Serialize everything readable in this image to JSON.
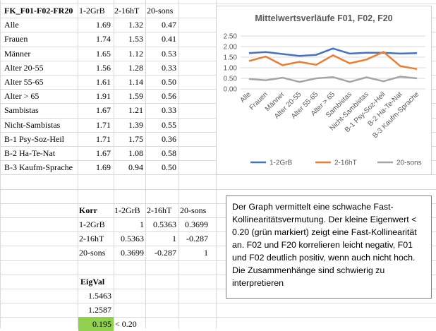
{
  "table1": {
    "header": [
      "FK_F01-F02-FR20",
      "1-2GrB",
      "2-16hT",
      "20-sons"
    ],
    "rows": [
      {
        "label": "Alle",
        "v1": "1.69",
        "v2": "1.32",
        "v3": "0.47"
      },
      {
        "label": "Frauen",
        "v1": "1.74",
        "v2": "1.53",
        "v3": "0.41"
      },
      {
        "label": "Männer",
        "v1": "1.65",
        "v2": "1.12",
        "v3": "0.53"
      },
      {
        "label": "Alter 20-55",
        "v1": "1.56",
        "v2": "1.28",
        "v3": "0.33"
      },
      {
        "label": "Alter 55-65",
        "v1": "1.61",
        "v2": "1.14",
        "v3": "0.50"
      },
      {
        "label": "Alter > 65",
        "v1": "1.91",
        "v2": "1.59",
        "v3": "0.56"
      },
      {
        "label": "Sambistas",
        "v1": "1.67",
        "v2": "1.21",
        "v3": "0.33"
      },
      {
        "label": "Nicht-Sambistas",
        "v1": "1.71",
        "v2": "1.39",
        "v3": "0.55"
      },
      {
        "label": "B-1 Psy-Soz-Heil",
        "v1": "1.71",
        "v2": "1.75",
        "v3": "0.36"
      },
      {
        "label": "B-2 Ha-Te-Nat",
        "v1": "1.67",
        "v2": "1.08",
        "v3": "0.58"
      },
      {
        "label": "B-3 Kaufm-Sprache",
        "v1": "1.69",
        "v2": "0.94",
        "v3": "0.50"
      }
    ]
  },
  "korr": {
    "title": "Korr",
    "header": [
      "1-2GrB",
      "2-16hT",
      "20-sons"
    ],
    "rows": [
      {
        "label": "1-2GrB",
        "v1": "1",
        "v2": "0.5363",
        "v3": "0.3699"
      },
      {
        "label": "2-16hT",
        "v1": "0.5363",
        "v2": "1",
        "v3": "-0.287"
      },
      {
        "label": "20-sons",
        "v1": "0.3699",
        "v2": "-0.287",
        "v3": "1"
      }
    ]
  },
  "eig": {
    "title": "EigVal",
    "values": [
      "1.5463",
      "1.2587",
      "0.195"
    ],
    "note": "< 0.20",
    "highlight_color": "#92d050"
  },
  "textbox": {
    "text": "Der Graph vermittelt eine schwache Fast-Kollinearitätsvermutung. Der kleine Eigenwert < 0.20 (grün markiert) zeigt eine Fast-Kollinearität an. F02 und F20 korrelieren leicht negativ, F01 und F02 deutlich positiv, wenn auch nicht hoch. Die Zusammenhänge sind schwierig zu interpretieren"
  },
  "chart_data": {
    "type": "line",
    "title": "Mittelwertsverläufe F01, F02, F20",
    "categories": [
      "Alle",
      "Frauen",
      "Männer",
      "Alter 20-55",
      "Alter 55-65",
      "Alter > 65",
      "Sambistas",
      "Nicht-Sambistas",
      "B-1 Psy-Soz-Heil",
      "B-2 Ha-Te-Nat",
      "B-3 Kaufm-Sprache"
    ],
    "series": [
      {
        "name": "1-2GrB",
        "color": "#4472c4",
        "values": [
          1.69,
          1.74,
          1.65,
          1.56,
          1.61,
          1.91,
          1.67,
          1.71,
          1.71,
          1.67,
          1.69
        ]
      },
      {
        "name": "2-16hT",
        "color": "#ed7d31",
        "values": [
          1.32,
          1.53,
          1.12,
          1.28,
          1.14,
          1.59,
          1.21,
          1.39,
          1.75,
          1.08,
          0.94
        ]
      },
      {
        "name": "20-sons",
        "color": "#a5a5a5",
        "values": [
          0.47,
          0.41,
          0.53,
          0.33,
          0.5,
          0.56,
          0.33,
          0.55,
          0.36,
          0.58,
          0.5
        ]
      }
    ],
    "y_ticks": [
      "0.00",
      "0.50",
      "1.00",
      "1.50",
      "2.00",
      "2.50"
    ],
    "ylim": [
      0,
      2.5
    ],
    "grid": true,
    "legend_position": "bottom"
  }
}
